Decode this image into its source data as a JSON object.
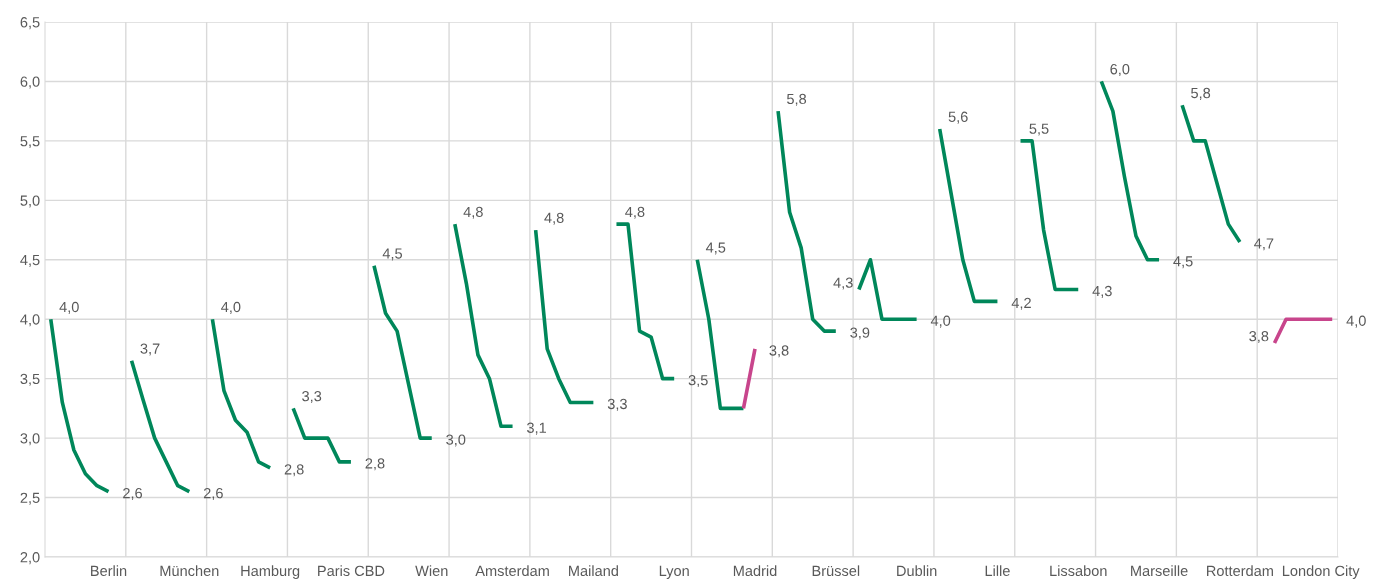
{
  "chart_data": {
    "type": "line",
    "categories": [
      null,
      null,
      null,
      null,
      null,
      "Berlin",
      null,
      null,
      null,
      null,
      null,
      null,
      "München",
      null,
      null,
      null,
      null,
      null,
      null,
      "Hamburg",
      null,
      null,
      null,
      null,
      null,
      null,
      "Paris CBD",
      null,
      null,
      null,
      null,
      null,
      null,
      "Wien",
      null,
      null,
      null,
      null,
      null,
      null,
      "Amsterdam",
      null,
      null,
      null,
      null,
      null,
      null,
      "Mailand",
      null,
      null,
      null,
      null,
      null,
      null,
      "Lyon",
      null,
      null,
      null,
      null,
      null,
      null,
      "Madrid",
      null,
      null,
      null,
      null,
      null,
      null,
      "Brüssel",
      null,
      null,
      null,
      null,
      null,
      null,
      "Dublin",
      null,
      null,
      null,
      null,
      null,
      null,
      "Lille",
      null,
      null,
      null,
      null,
      null,
      null,
      "Lissabon",
      null,
      null,
      null,
      null,
      null,
      null,
      "Marseille",
      null,
      null,
      null,
      null,
      null,
      null,
      "Rotterdam",
      null,
      null,
      null,
      null,
      null,
      null,
      "London City",
      null
    ],
    "series": [
      {
        "color": "#00875a",
        "values": [
          4.0,
          3.3,
          2.9,
          2.7,
          2.6,
          2.55,
          null,
          3.65,
          3.32,
          3.0,
          2.8,
          2.6,
          2.55,
          null,
          4.0,
          3.4,
          3.15,
          3.05,
          2.8,
          2.75,
          null,
          3.25,
          3.0,
          3.0,
          3.0,
          2.8,
          2.8,
          null,
          4.45,
          4.05,
          3.9,
          3.45,
          3.0,
          3.0,
          null,
          4.8,
          4.3,
          3.7,
          3.5,
          3.1,
          3.1,
          null,
          4.75,
          3.75,
          3.5,
          3.3,
          3.3,
          3.3,
          null,
          4.8,
          4.8,
          3.9,
          3.85,
          3.5,
          3.5,
          null,
          4.5,
          4.0,
          3.25,
          3.25,
          3.25,
          null,
          null,
          5.75,
          4.9,
          4.6,
          4.0,
          3.9,
          3.9,
          null,
          4.25,
          4.5,
          4.0,
          4.0,
          4.0,
          4.0,
          null,
          5.6,
          5.05,
          4.5,
          4.15,
          4.15,
          4.15,
          null,
          5.5,
          5.5,
          4.75,
          4.25,
          4.25,
          4.25,
          null,
          6.0,
          5.75,
          5.2,
          4.7,
          4.5,
          4.5,
          null,
          5.8,
          5.5,
          5.5,
          5.15,
          4.8,
          4.65,
          null,
          null,
          null,
          null,
          null,
          null,
          null,
          null
        ],
        "value_labels": [
          "4,0",
          null,
          null,
          null,
          null,
          "2,6",
          null,
          "3,7",
          null,
          null,
          null,
          null,
          "2,6",
          null,
          "4,0",
          null,
          null,
          null,
          null,
          "2,8",
          null,
          "3,3",
          null,
          null,
          null,
          null,
          "2,8",
          null,
          "4,5",
          null,
          null,
          null,
          null,
          "3,0",
          null,
          "4,8",
          null,
          null,
          null,
          null,
          "3,1",
          null,
          "4,8",
          null,
          null,
          null,
          null,
          "3,3",
          null,
          "4,8",
          null,
          null,
          null,
          null,
          "3,5",
          null,
          "4,5",
          null,
          null,
          null,
          null,
          null,
          null,
          "5,8",
          null,
          null,
          null,
          null,
          "3,9",
          null,
          "4,3",
          null,
          null,
          null,
          null,
          "4,0",
          null,
          "5,6",
          null,
          null,
          null,
          null,
          "4,2",
          null,
          "5,5",
          null,
          null,
          null,
          null,
          "4,3",
          null,
          "6,0",
          null,
          null,
          null,
          null,
          "4,5",
          null,
          "5,8",
          null,
          null,
          null,
          null,
          "4,7",
          null,
          null,
          null,
          null,
          null,
          null,
          null,
          null
        ]
      },
      {
        "color": "#c8458c",
        "values": [
          null,
          null,
          null,
          null,
          null,
          null,
          null,
          null,
          null,
          null,
          null,
          null,
          null,
          null,
          null,
          null,
          null,
          null,
          null,
          null,
          null,
          null,
          null,
          null,
          null,
          null,
          null,
          null,
          null,
          null,
          null,
          null,
          null,
          null,
          null,
          null,
          null,
          null,
          null,
          null,
          null,
          null,
          null,
          null,
          null,
          null,
          null,
          null,
          null,
          null,
          null,
          null,
          null,
          null,
          null,
          null,
          null,
          null,
          null,
          null,
          3.25,
          3.75,
          null,
          null,
          null,
          null,
          null,
          null,
          null,
          null,
          null,
          null,
          null,
          null,
          null,
          null,
          null,
          null,
          null,
          null,
          null,
          null,
          null,
          null,
          null,
          null,
          null,
          null,
          null,
          null,
          null,
          null,
          null,
          null,
          null,
          null,
          null,
          null,
          null,
          null,
          null,
          null,
          null,
          null,
          null,
          null,
          3.8,
          4.0,
          4.0,
          4.0,
          4.0,
          4.0
        ],
        "value_labels": [
          null,
          null,
          null,
          null,
          null,
          null,
          null,
          null,
          null,
          null,
          null,
          null,
          null,
          null,
          null,
          null,
          null,
          null,
          null,
          null,
          null,
          null,
          null,
          null,
          null,
          null,
          null,
          null,
          null,
          null,
          null,
          null,
          null,
          null,
          null,
          null,
          null,
          null,
          null,
          null,
          null,
          null,
          null,
          null,
          null,
          null,
          null,
          null,
          null,
          null,
          null,
          null,
          null,
          null,
          null,
          null,
          null,
          null,
          null,
          null,
          null,
          "3,8",
          null,
          null,
          null,
          null,
          null,
          null,
          null,
          null,
          null,
          null,
          null,
          null,
          null,
          null,
          null,
          null,
          null,
          null,
          null,
          null,
          null,
          null,
          null,
          null,
          null,
          null,
          null,
          null,
          null,
          null,
          null,
          null,
          null,
          null,
          null,
          null,
          null,
          null,
          null,
          null,
          null,
          null,
          null,
          null,
          "3,8",
          null,
          null,
          null,
          null,
          "4,0"
        ]
      }
    ],
    "ylim": [
      2.0,
      6.5
    ],
    "yticks": [
      {
        "value": 2.0,
        "label": "2,0"
      },
      {
        "value": 2.5,
        "label": "2,5"
      },
      {
        "value": 3.0,
        "label": "3,0"
      },
      {
        "value": 3.5,
        "label": "3,5"
      },
      {
        "value": 4.0,
        "label": "4,0"
      },
      {
        "value": 4.5,
        "label": "4,5"
      },
      {
        "value": 5.0,
        "label": "5,0"
      },
      {
        "value": 5.5,
        "label": "5,5"
      },
      {
        "value": 6.0,
        "label": "6,0"
      },
      {
        "value": 6.5,
        "label": "6,5"
      }
    ],
    "grid": true,
    "line_style": "solid",
    "marker": "none"
  }
}
